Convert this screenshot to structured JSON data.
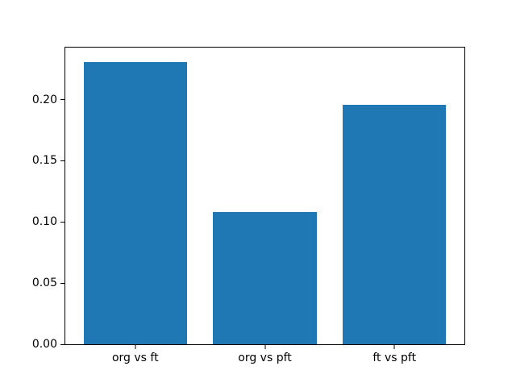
{
  "chart_data": {
    "type": "bar",
    "categories": [
      "org vs ft",
      "org vs pft",
      "ft vs pft"
    ],
    "values": [
      0.231,
      0.108,
      0.196
    ],
    "yticks": [
      0.0,
      0.05,
      0.1,
      0.15,
      0.2
    ],
    "ytick_labels": [
      "0.00",
      "0.05",
      "0.10",
      "0.15",
      "0.20"
    ],
    "ylim": [
      0,
      0.2426
    ],
    "xlim": [
      -0.54,
      2.54
    ],
    "bar_width_fraction": 0.8,
    "bar_color": "#1f77b4",
    "background_color": "#ffffff",
    "spine_color": "#000000",
    "legend": "none",
    "grid": "off",
    "title": "",
    "xlabel": "",
    "ylabel": ""
  }
}
